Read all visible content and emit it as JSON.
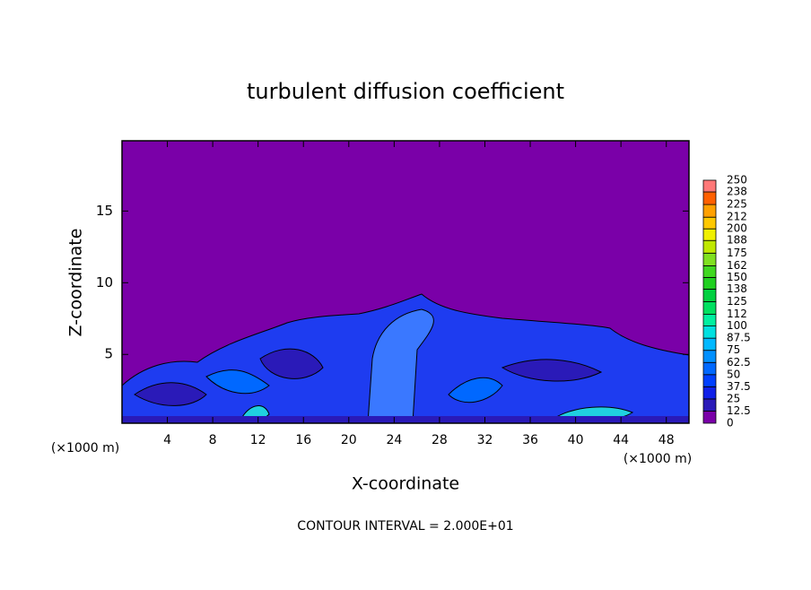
{
  "chart_data": {
    "type": "contour",
    "title": "turbulent diffusion coefficient",
    "xlabel": "X-coordinate",
    "ylabel": "Z-coordinate",
    "x_unit": "(×1000 m)",
    "footer": "CONTOUR INTERVAL = 2.000E+01",
    "xlim": [
      0,
      50
    ],
    "ylim": [
      0.2,
      19.9
    ],
    "xticks": [
      4,
      8,
      12,
      16,
      20,
      24,
      28,
      32,
      36,
      40,
      44,
      48
    ],
    "yticks": [
      5,
      10,
      15
    ],
    "colorbar": {
      "clim": [
        0,
        250
      ],
      "levels": [
        0,
        12.5,
        25,
        37.5,
        50,
        62.5,
        75,
        87.5,
        100,
        112,
        125,
        138,
        150,
        162,
        175,
        188,
        200,
        212,
        225,
        238,
        250
      ],
      "colors": [
        "#7a00a8",
        "#2a1ab8",
        "#1020e8",
        "#0040ff",
        "#0068ff",
        "#0090ff",
        "#00b8ff",
        "#00e0e0",
        "#00f0a0",
        "#00e060",
        "#00d040",
        "#20d020",
        "#40d820",
        "#80e020",
        "#c0e800",
        "#f0f000",
        "#ffc800",
        "#ffa000",
        "#ff6000",
        "#ff7878"
      ]
    }
  }
}
